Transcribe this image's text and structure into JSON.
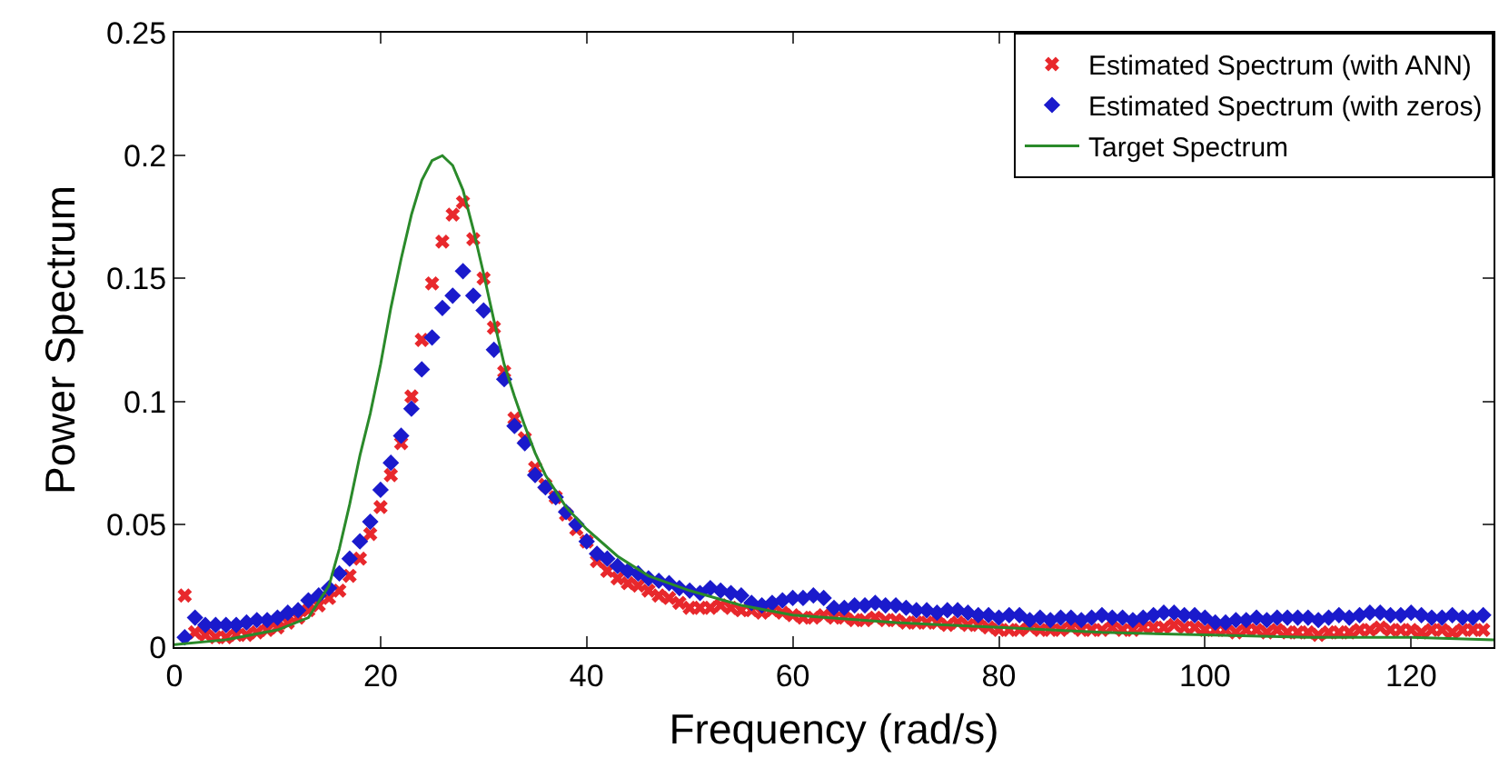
{
  "chart_data": {
    "type": "scatter",
    "xlabel": "Frequency (rad/s)",
    "ylabel": "Power Spectrum",
    "x": [
      1,
      2,
      3,
      4,
      5,
      6,
      7,
      8,
      9,
      10,
      11,
      12,
      13,
      14,
      15,
      16,
      17,
      18,
      19,
      20,
      21,
      22,
      23,
      24,
      25,
      26,
      27,
      28,
      29,
      30,
      31,
      32,
      33,
      34,
      35,
      36,
      37,
      38,
      39,
      40,
      41,
      42,
      43,
      44,
      45,
      46,
      47,
      48,
      49,
      50,
      51,
      52,
      53,
      54,
      55,
      56,
      57,
      58,
      59,
      60,
      61,
      62,
      63,
      64,
      65,
      66,
      67,
      68,
      69,
      70,
      71,
      72,
      73,
      74,
      75,
      76,
      77,
      78,
      79,
      80,
      81,
      82,
      83,
      84,
      85,
      86,
      87,
      88,
      89,
      90,
      91,
      92,
      93,
      94,
      95,
      96,
      97,
      98,
      99,
      100,
      101,
      102,
      103,
      104,
      105,
      106,
      107,
      108,
      109,
      110,
      111,
      112,
      113,
      114,
      115,
      116,
      117,
      118,
      119,
      120,
      121,
      122,
      123,
      124,
      125,
      126,
      127
    ],
    "series": [
      {
        "name": "Estimated Spectrum (with ANN)",
        "marker": "cross",
        "color": "#e8282c",
        "values": [
          0.021,
          0.006,
          0.005,
          0.004,
          0.004,
          0.005,
          0.005,
          0.006,
          0.007,
          0.008,
          0.01,
          0.012,
          0.015,
          0.017,
          0.02,
          0.023,
          0.029,
          0.036,
          0.046,
          0.057,
          0.07,
          0.083,
          0.102,
          0.125,
          0.148,
          0.165,
          0.176,
          0.181,
          0.166,
          0.15,
          0.13,
          0.112,
          0.093,
          0.085,
          0.073,
          0.066,
          0.061,
          0.054,
          0.048,
          0.043,
          0.035,
          0.031,
          0.028,
          0.026,
          0.025,
          0.023,
          0.021,
          0.02,
          0.018,
          0.016,
          0.016,
          0.016,
          0.017,
          0.016,
          0.015,
          0.015,
          0.014,
          0.015,
          0.014,
          0.013,
          0.012,
          0.012,
          0.013,
          0.012,
          0.012,
          0.011,
          0.011,
          0.012,
          0.011,
          0.011,
          0.01,
          0.01,
          0.01,
          0.01,
          0.009,
          0.01,
          0.009,
          0.009,
          0.008,
          0.007,
          0.007,
          0.007,
          0.008,
          0.007,
          0.007,
          0.007,
          0.008,
          0.007,
          0.007,
          0.007,
          0.008,
          0.007,
          0.007,
          0.008,
          0.008,
          0.008,
          0.009,
          0.008,
          0.008,
          0.007,
          0.007,
          0.007,
          0.006,
          0.007,
          0.007,
          0.006,
          0.007,
          0.006,
          0.006,
          0.006,
          0.005,
          0.006,
          0.006,
          0.006,
          0.007,
          0.007,
          0.008,
          0.007,
          0.007,
          0.007,
          0.006,
          0.007,
          0.007,
          0.006,
          0.007,
          0.007,
          0.007
        ]
      },
      {
        "name": "Estimated Spectrum (with zeros)",
        "marker": "diamond",
        "color": "#1a1acc",
        "values": [
          0.004,
          0.012,
          0.009,
          0.009,
          0.009,
          0.009,
          0.01,
          0.011,
          0.011,
          0.012,
          0.014,
          0.015,
          0.019,
          0.021,
          0.024,
          0.03,
          0.036,
          0.043,
          0.051,
          0.064,
          0.075,
          0.086,
          0.097,
          0.113,
          0.126,
          0.138,
          0.143,
          0.153,
          0.143,
          0.137,
          0.121,
          0.109,
          0.09,
          0.083,
          0.07,
          0.065,
          0.061,
          0.055,
          0.05,
          0.043,
          0.038,
          0.036,
          0.033,
          0.031,
          0.03,
          0.028,
          0.027,
          0.026,
          0.024,
          0.023,
          0.022,
          0.024,
          0.023,
          0.022,
          0.021,
          0.018,
          0.017,
          0.018,
          0.019,
          0.02,
          0.02,
          0.021,
          0.02,
          0.016,
          0.016,
          0.017,
          0.017,
          0.018,
          0.017,
          0.017,
          0.016,
          0.015,
          0.015,
          0.014,
          0.015,
          0.015,
          0.014,
          0.013,
          0.013,
          0.012,
          0.013,
          0.013,
          0.011,
          0.012,
          0.011,
          0.012,
          0.012,
          0.011,
          0.012,
          0.013,
          0.012,
          0.012,
          0.011,
          0.012,
          0.013,
          0.014,
          0.014,
          0.013,
          0.013,
          0.012,
          0.01,
          0.01,
          0.011,
          0.011,
          0.012,
          0.011,
          0.012,
          0.012,
          0.012,
          0.012,
          0.011,
          0.012,
          0.013,
          0.012,
          0.013,
          0.014,
          0.014,
          0.013,
          0.013,
          0.014,
          0.013,
          0.012,
          0.012,
          0.013,
          0.012,
          0.012,
          0.013
        ]
      },
      {
        "name": "Target Spectrum",
        "type": "line",
        "marker": "none",
        "line_style": "solid",
        "color": "#2a8a2a",
        "x": [
          0,
          5,
          10,
          13,
          15,
          16,
          17,
          18,
          19,
          20,
          21,
          22,
          23,
          24,
          25,
          26,
          27,
          28,
          29,
          30,
          31,
          32,
          33,
          34,
          35,
          36,
          38,
          40,
          43,
          46,
          50,
          55,
          60,
          70,
          80,
          90,
          100,
          110,
          120,
          128
        ],
        "values": [
          0.001,
          0.003,
          0.007,
          0.012,
          0.025,
          0.04,
          0.058,
          0.078,
          0.095,
          0.115,
          0.138,
          0.158,
          0.176,
          0.19,
          0.198,
          0.2,
          0.196,
          0.186,
          0.17,
          0.152,
          0.133,
          0.115,
          0.102,
          0.09,
          0.079,
          0.07,
          0.057,
          0.048,
          0.037,
          0.029,
          0.023,
          0.017,
          0.013,
          0.01,
          0.008,
          0.006,
          0.005,
          0.004,
          0.004,
          0.003
        ]
      }
    ],
    "xlim": [
      0,
      128
    ],
    "xticks": [
      0,
      20,
      40,
      60,
      80,
      100,
      120
    ],
    "ylim": [
      0,
      0.25
    ],
    "yticks": [
      0,
      0.05,
      0.1,
      0.15,
      0.2,
      0.25
    ],
    "grid": false,
    "legend": "top right"
  }
}
